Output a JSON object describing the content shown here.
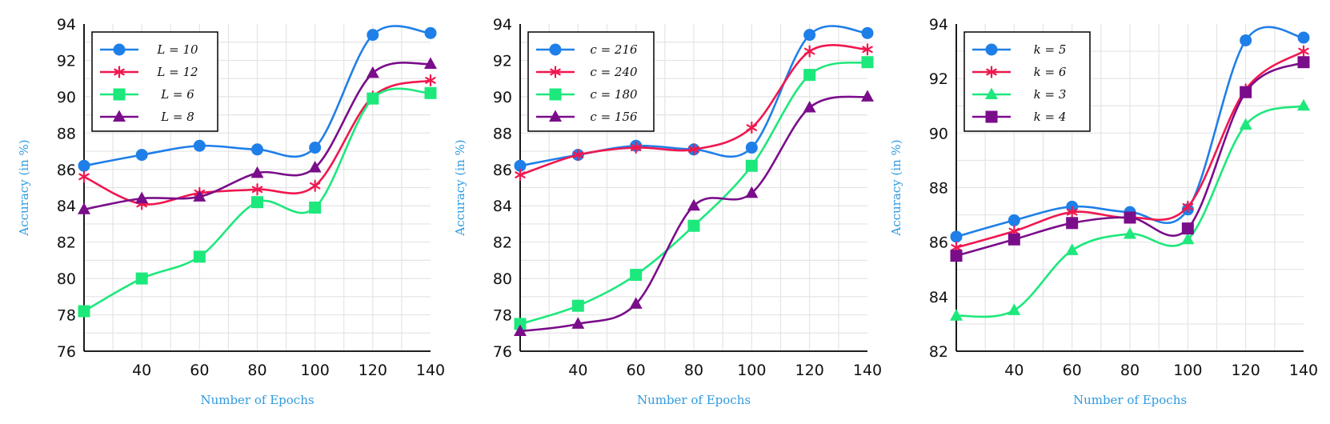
{
  "chart_data": [
    {
      "type": "line",
      "xlabel": "Number of Epochs",
      "ylabel": "Accuracy (in %)",
      "x": [
        20,
        40,
        60,
        80,
        100,
        120,
        140
      ],
      "xticks": [
        40,
        60,
        80,
        100,
        120,
        140
      ],
      "xlim": [
        20,
        140
      ],
      "ylim": [
        76,
        94
      ],
      "yticks": [
        76,
        78,
        80,
        82,
        84,
        86,
        88,
        90,
        92,
        94
      ],
      "grid": true,
      "legend_position": "top-left",
      "series": [
        {
          "name": "L = 10",
          "color": "#1f7fe8",
          "marker": "circle",
          "values": [
            86.2,
            86.8,
            87.3,
            87.1,
            87.2,
            93.4,
            93.5
          ]
        },
        {
          "name": "L = 12",
          "color": "#f0174f",
          "marker": "star",
          "values": [
            85.6,
            84.1,
            84.7,
            84.9,
            85.1,
            90.0,
            90.9
          ]
        },
        {
          "name": "L = 6",
          "color": "#1de87c",
          "marker": "square",
          "values": [
            78.2,
            80.0,
            81.2,
            84.2,
            83.9,
            89.9,
            90.2
          ]
        },
        {
          "name": "L = 8",
          "color": "#7a0d8a",
          "marker": "triangle",
          "values": [
            83.8,
            84.4,
            84.5,
            85.8,
            86.1,
            91.3,
            91.8
          ]
        }
      ]
    },
    {
      "type": "line",
      "xlabel": "Number of Epochs",
      "ylabel": "Accuracy (in %)",
      "x": [
        20,
        40,
        60,
        80,
        100,
        120,
        140
      ],
      "xticks": [
        40,
        60,
        80,
        100,
        120,
        140
      ],
      "xlim": [
        20,
        140
      ],
      "ylim": [
        76,
        94
      ],
      "yticks": [
        76,
        78,
        80,
        82,
        84,
        86,
        88,
        90,
        92,
        94
      ],
      "grid": true,
      "legend_position": "top-left",
      "series": [
        {
          "name": "c = 216",
          "color": "#1f7fe8",
          "marker": "circle",
          "values": [
            86.2,
            86.8,
            87.3,
            87.1,
            87.2,
            93.4,
            93.5
          ]
        },
        {
          "name": "c = 240",
          "color": "#f0174f",
          "marker": "star",
          "values": [
            85.7,
            86.8,
            87.2,
            87.1,
            88.3,
            92.5,
            92.6
          ]
        },
        {
          "name": "c = 180",
          "color": "#1de87c",
          "marker": "square",
          "values": [
            77.5,
            78.5,
            80.2,
            82.9,
            86.2,
            91.2,
            91.9
          ]
        },
        {
          "name": "c = 156",
          "color": "#7a0d8a",
          "marker": "triangle",
          "values": [
            77.1,
            77.5,
            78.6,
            84.0,
            84.7,
            89.4,
            90.0
          ]
        }
      ]
    },
    {
      "type": "line",
      "xlabel": "Number of Epochs",
      "ylabel": "Accuracy (in %)",
      "x": [
        20,
        40,
        60,
        80,
        100,
        120,
        140
      ],
      "xticks": [
        40,
        60,
        80,
        100,
        120,
        140
      ],
      "xlim": [
        20,
        140
      ],
      "ylim": [
        82,
        94
      ],
      "yticks": [
        82,
        84,
        86,
        88,
        90,
        92,
        94
      ],
      "grid": true,
      "legend_position": "top-left",
      "series": [
        {
          "name": "k = 5",
          "color": "#1f7fe8",
          "marker": "circle",
          "values": [
            86.2,
            86.8,
            87.3,
            87.1,
            87.2,
            93.4,
            93.5
          ]
        },
        {
          "name": "k = 6",
          "color": "#f0174f",
          "marker": "star",
          "values": [
            85.8,
            86.4,
            87.1,
            86.9,
            87.3,
            91.6,
            93.0
          ]
        },
        {
          "name": "k = 3",
          "color": "#1de87c",
          "marker": "triangle",
          "values": [
            83.3,
            83.5,
            85.7,
            86.3,
            86.1,
            90.3,
            91.0
          ]
        },
        {
          "name": "k = 4",
          "color": "#7a0d8a",
          "marker": "square",
          "values": [
            85.5,
            86.1,
            86.7,
            86.9,
            86.5,
            91.5,
            92.6
          ]
        }
      ]
    }
  ]
}
